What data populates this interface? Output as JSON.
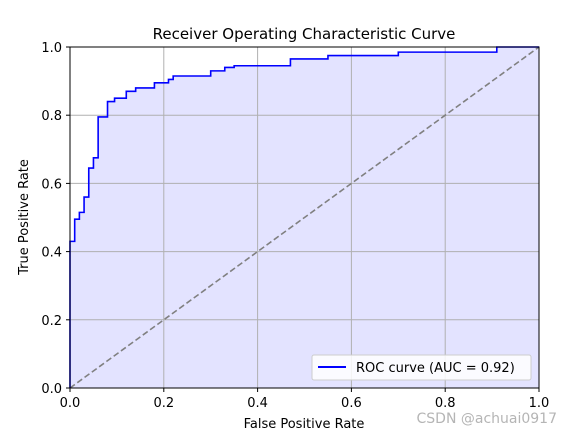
{
  "chart_data": {
    "type": "line",
    "title": "Receiver Operating Characteristic Curve",
    "xlabel": "False Positive Rate",
    "ylabel": "True Positive Rate",
    "xlim": [
      0.0,
      1.0
    ],
    "ylim": [
      0.0,
      1.0
    ],
    "x_ticks": [
      "0.0",
      "0.2",
      "0.4",
      "0.6",
      "0.8",
      "1.0"
    ],
    "y_ticks": [
      "0.0",
      "0.2",
      "0.4",
      "0.6",
      "0.8",
      "1.0"
    ],
    "grid": true,
    "legend_position": "lower-right",
    "series": [
      {
        "name": "ROC curve (AUC = 0.92)",
        "color": "#0000ff",
        "fill_color": "#e3e3ff",
        "x": [
          0.0,
          0.0,
          0.01,
          0.01,
          0.02,
          0.02,
          0.03,
          0.03,
          0.04,
          0.04,
          0.05,
          0.05,
          0.06,
          0.06,
          0.08,
          0.08,
          0.095,
          0.095,
          0.12,
          0.12,
          0.14,
          0.14,
          0.18,
          0.18,
          0.21,
          0.21,
          0.22,
          0.22,
          0.3,
          0.3,
          0.33,
          0.33,
          0.35,
          0.35,
          0.47,
          0.47,
          0.55,
          0.55,
          0.7,
          0.7,
          0.91,
          0.91,
          1.0
        ],
        "y": [
          0.0,
          0.43,
          0.43,
          0.495,
          0.495,
          0.515,
          0.515,
          0.56,
          0.56,
          0.645,
          0.645,
          0.675,
          0.675,
          0.795,
          0.795,
          0.84,
          0.84,
          0.85,
          0.85,
          0.87,
          0.87,
          0.88,
          0.88,
          0.895,
          0.895,
          0.905,
          0.905,
          0.915,
          0.915,
          0.93,
          0.93,
          0.94,
          0.94,
          0.945,
          0.945,
          0.965,
          0.965,
          0.975,
          0.975,
          0.985,
          0.985,
          1.0,
          1.0
        ]
      },
      {
        "name": "",
        "style": "dashed",
        "color": "#808080",
        "x": [
          0.0,
          1.0
        ],
        "y": [
          0.0,
          1.0
        ]
      }
    ]
  },
  "watermark": "CSDN @achuai0917"
}
